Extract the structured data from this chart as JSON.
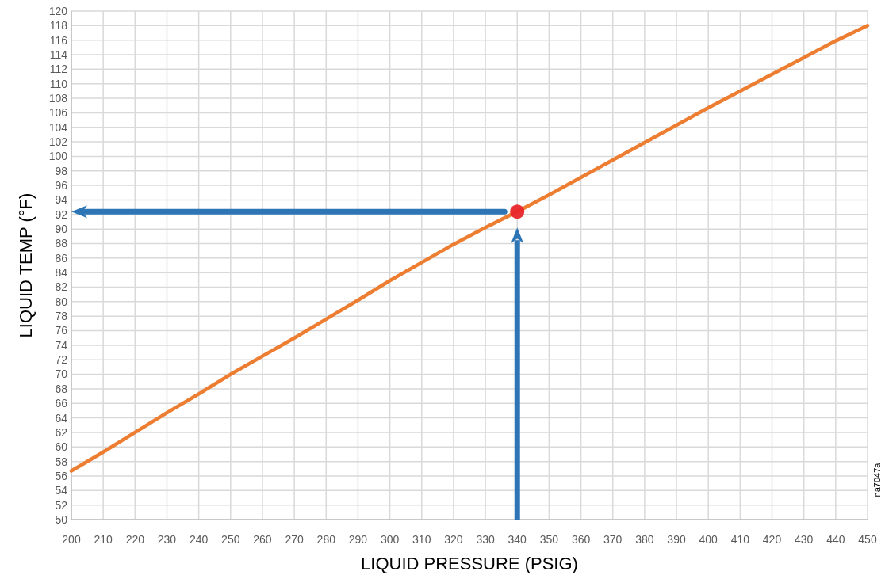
{
  "chart_data": {
    "type": "line",
    "xlabel": "LIQUID PRESSURE (PSIG)",
    "ylabel": "LIQUID TEMP  (°F)",
    "xlim": [
      200,
      450
    ],
    "xticks": [
      200,
      210,
      220,
      230,
      240,
      250,
      260,
      270,
      280,
      290,
      300,
      310,
      320,
      330,
      340,
      350,
      360,
      370,
      380,
      390,
      400,
      410,
      420,
      430,
      440,
      450
    ],
    "ylim": [
      50,
      120
    ],
    "yticks": [
      50,
      52,
      54,
      56,
      58,
      60,
      62,
      64,
      66,
      68,
      70,
      72,
      74,
      76,
      78,
      80,
      82,
      84,
      86,
      88,
      90,
      92,
      94,
      96,
      98,
      100,
      102,
      104,
      106,
      108,
      110,
      112,
      114,
      116,
      118,
      120
    ],
    "grid": true,
    "x": [
      200,
      210,
      220,
      230,
      240,
      250,
      260,
      270,
      280,
      290,
      300,
      310,
      320,
      330,
      340,
      350,
      360,
      370,
      380,
      390,
      400,
      410,
      420,
      430,
      440,
      450
    ],
    "series": [
      {
        "color": "#ed7d31",
        "values": [
          56.7,
          59.3,
          62.0,
          64.7,
          67.3,
          70.0,
          72.5,
          75.0,
          77.6,
          80.2,
          82.9,
          85.4,
          87.9,
          90.2,
          92.4,
          94.7,
          97.1,
          99.5,
          101.9,
          104.3,
          106.7,
          109.0,
          111.3,
          113.6,
          115.9,
          118.0
        ]
      },
      {
        "type": "scatter",
        "color": "#e8262a",
        "x": [
          340
        ],
        "values": [
          92.4
        ],
        "marker": "circle"
      }
    ],
    "annotations": [
      "na7047a"
    ]
  }
}
